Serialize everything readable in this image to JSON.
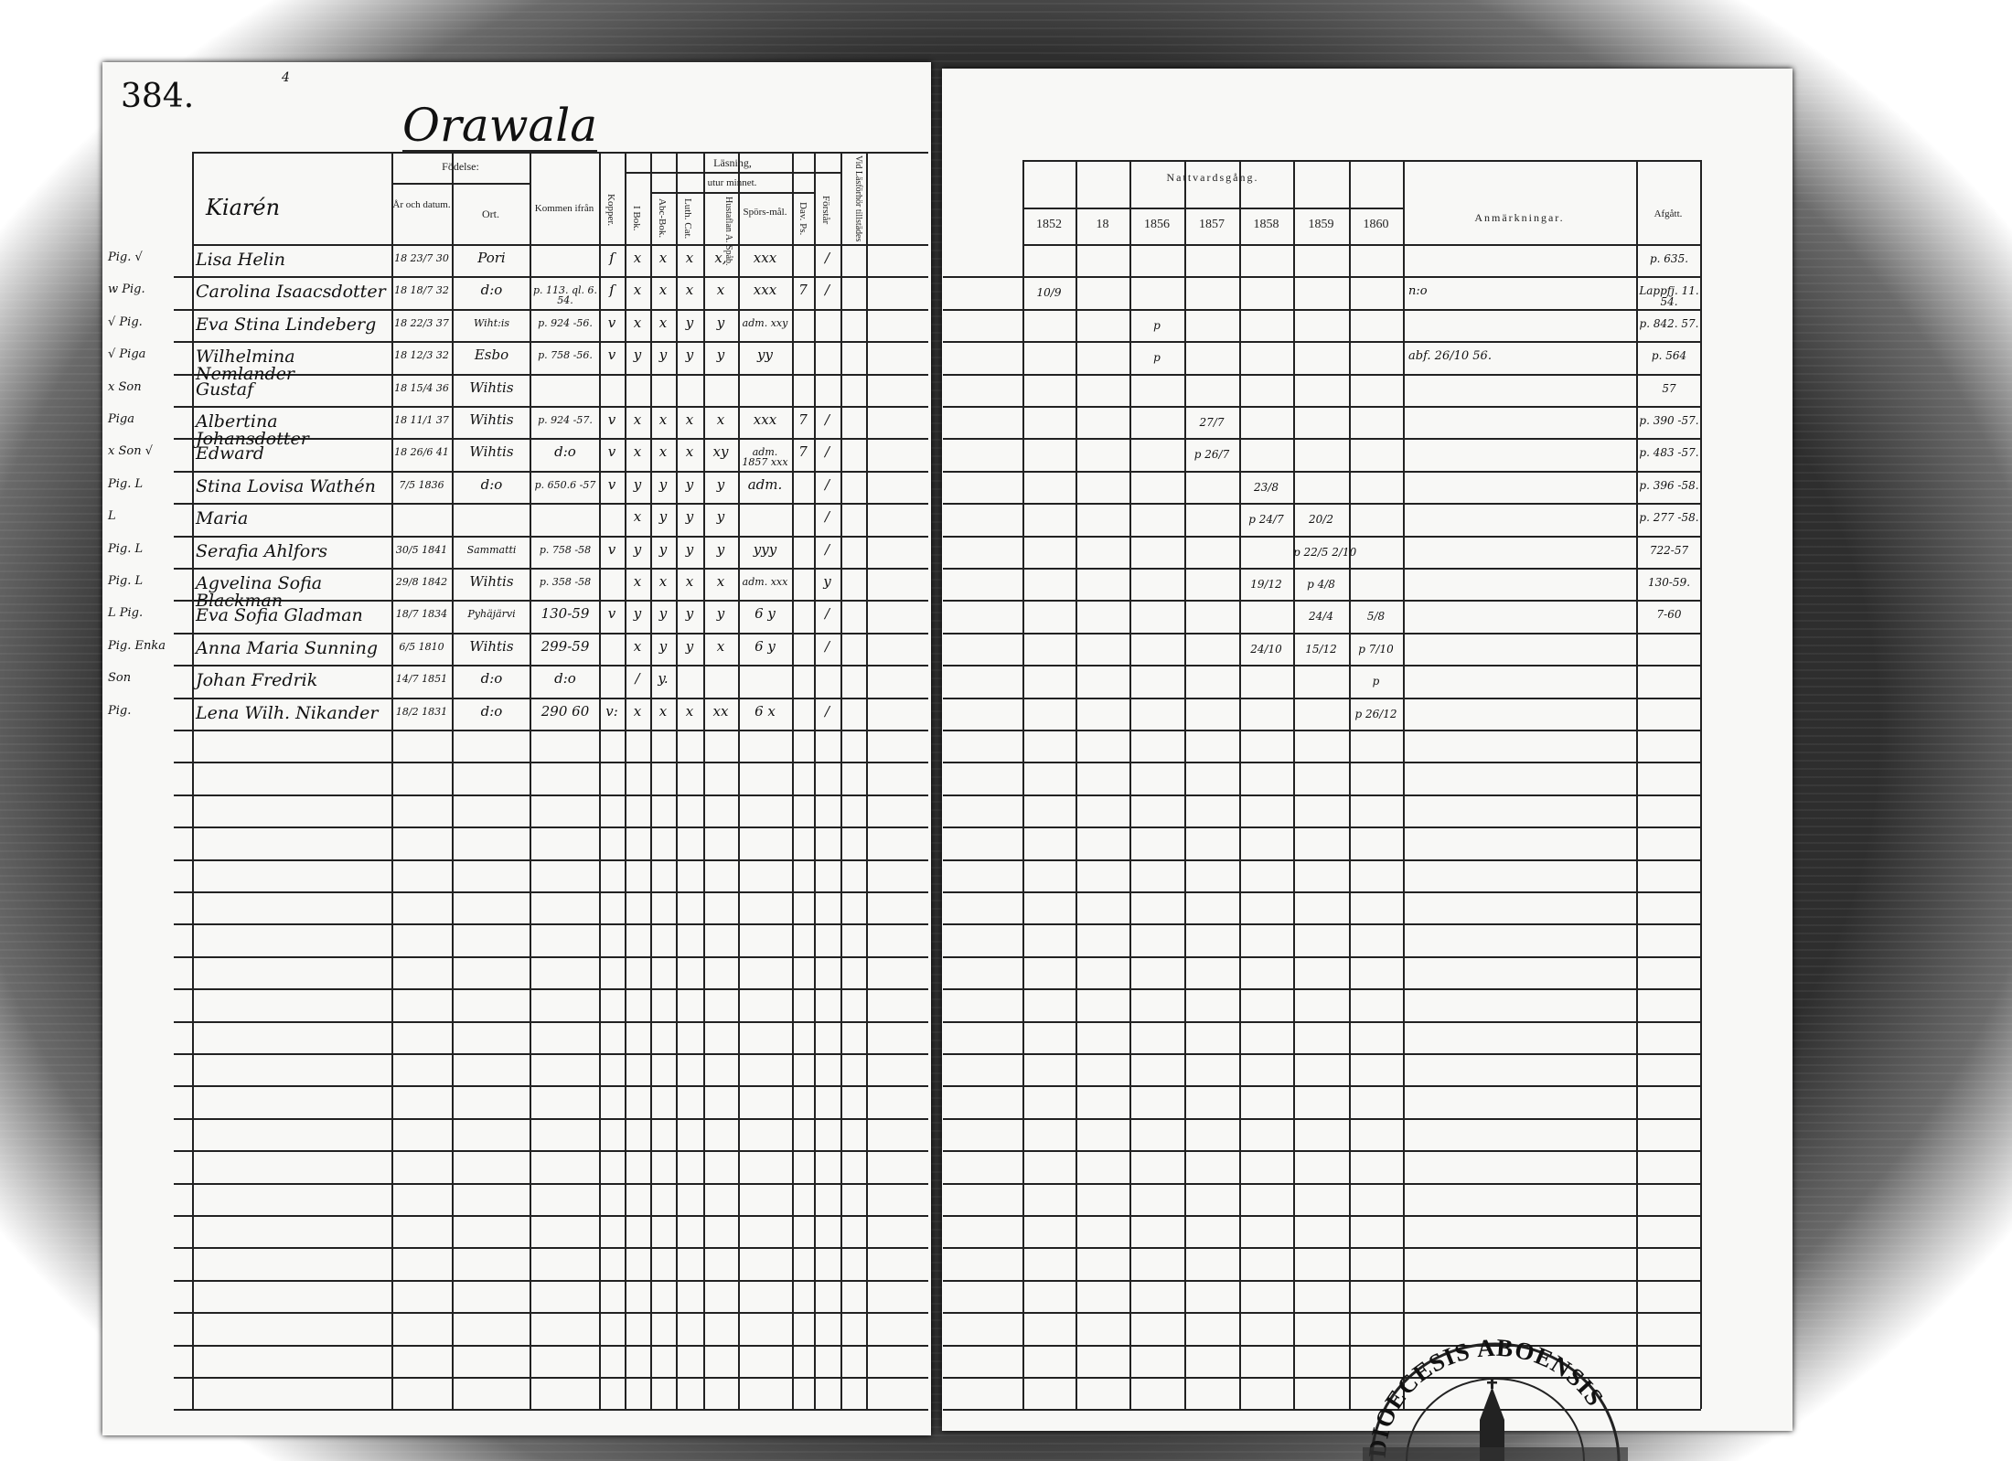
{
  "page_number": "384.",
  "top_mark": "4",
  "village_title": "Orawala",
  "left_headers": {
    "household": "Kiarén",
    "birth": "Födelse:",
    "birth_year": "År och datum.",
    "birth_place": "Ort.",
    "came_from": "Kommen ifrån",
    "smallpox": "Kopper.",
    "reading": "Läsning,",
    "by_heart": "utur minnet.",
    "in_book": "I Bok.",
    "abc_book": "Abc-Bok.",
    "luth_cat": "Luth. Cat.",
    "house_table": "Hustaflan A. Spåb.",
    "questions": "Spörs-mål.",
    "dav_ps": "Dav. Ps.",
    "understands": "Förstår",
    "at_exam": "Vid Läsförhör tillstädes"
  },
  "right_headers": {
    "communion": "Nattvardsgång.",
    "years": [
      "1852",
      "18",
      "1856",
      "1857",
      "1858",
      "1859",
      "1860"
    ],
    "remarks": "Anmärkningar.",
    "departed": "Afgått."
  },
  "rows": [
    {
      "margin": "Pig. √",
      "name": "Lisa Helin",
      "birth": "18 23/7 30",
      "ort": "Pori",
      "kommen": "",
      "kopper": "ſ",
      "ibok": "x",
      "abc": "x",
      "luth": "x",
      "hust": "x,",
      "spors": "xxx",
      "dav": "",
      "forstar": "/",
      "vid": "",
      "nattvard": [
        "",
        "",
        "",
        "",
        "",
        "",
        ""
      ],
      "anm": "",
      "afgatt": "p. 635."
    },
    {
      "margin": "w  Pig.",
      "name": "Carolina Isaacsdotter",
      "birth": "18 18/7 32",
      "ort": "d:o",
      "kommen": "p. 113. ql. 6. 54.",
      "kopper": "ſ",
      "ibok": "x",
      "abc": "x",
      "luth": "x",
      "hust": "x",
      "spors": "xxx",
      "dav": "7",
      "forstar": "/",
      "vid": "",
      "nattvard": [
        "10/9",
        "",
        "",
        "",
        "",
        "",
        ""
      ],
      "anm": "n:o",
      "afgatt": "Lappfj. 11. 54."
    },
    {
      "margin": "√ Pig.",
      "name": "Eva Stina Lindeberg",
      "birth": "18 22/3 37",
      "ort": "Wiht:is",
      "kommen": "p. 924 -56.",
      "kopper": "v",
      "ibok": "x",
      "abc": "x",
      "luth": "y",
      "hust": "y",
      "spors": "adm. xxy",
      "dav": "",
      "forstar": "",
      "vid": "",
      "nattvard": [
        "",
        "",
        "p",
        "",
        "",
        "",
        ""
      ],
      "anm": "",
      "afgatt": "p. 842. 57."
    },
    {
      "margin": "√ Piga",
      "name": "Wilhelmina Nemlander",
      "birth": "18 12/3 32",
      "ort": "Esbo",
      "kommen": "p. 758 -56.",
      "kopper": "v",
      "ibok": "y",
      "abc": "y",
      "luth": "y",
      "hust": "y",
      "spors": "yy",
      "dav": "",
      "forstar": "",
      "vid": "",
      "nattvard": [
        "",
        "",
        "p",
        "",
        "",
        "",
        ""
      ],
      "anm": "abf. 26/10 56.",
      "afgatt": "p. 564"
    },
    {
      "margin": "x Son",
      "name": "Gustaf",
      "birth": "18 15/4 36",
      "ort": "Wihtis",
      "kommen": "",
      "kopper": "",
      "ibok": "",
      "abc": "",
      "luth": "",
      "hust": "",
      "spors": "",
      "dav": "",
      "forstar": "",
      "vid": "",
      "nattvard": [
        "",
        "",
        "",
        "",
        "",
        "",
        ""
      ],
      "anm": "",
      "afgatt": "57"
    },
    {
      "margin": "Piga",
      "name": "Albertina Johansdotter",
      "birth": "18 11/1 37",
      "ort": "Wihtis",
      "kommen": "p. 924 -57.",
      "kopper": "v",
      "ibok": "x",
      "abc": "x",
      "luth": "x",
      "hust": "x",
      "spors": "xxx",
      "dav": "7",
      "forstar": "/",
      "vid": "",
      "nattvard": [
        "",
        "",
        "",
        "27/7",
        "",
        "",
        ""
      ],
      "anm": "",
      "afgatt": "p. 390 -57."
    },
    {
      "margin": "x Son √",
      "name": "Edward",
      "birth": "18 26/6 41",
      "ort": "Wihtis",
      "kommen": "d:o",
      "kopper": "v",
      "ibok": "x",
      "abc": "x",
      "luth": "x",
      "hust": "xy",
      "spors": "adm. 1857 xxx",
      "dav": "7",
      "forstar": "/",
      "vid": "",
      "nattvard": [
        "",
        "",
        "",
        "p 26/7",
        "",
        "",
        ""
      ],
      "anm": "",
      "afgatt": "p. 483 -57."
    },
    {
      "margin": "Pig. L",
      "name": "Stina Lovisa Wathén",
      "birth": "7/5 1836",
      "ort": "d:o",
      "kommen": "p. 650.6 -57",
      "kopper": "v",
      "ibok": "y",
      "abc": "y",
      "luth": "y",
      "hust": "y",
      "spors": "adm.",
      "dav": "",
      "forstar": "/",
      "vid": "",
      "nattvard": [
        "",
        "",
        "",
        "",
        "23/8",
        "",
        ""
      ],
      "anm": "",
      "afgatt": "p. 396 -58."
    },
    {
      "margin": "L",
      "name": "Maria",
      "birth": "",
      "ort": "",
      "kommen": "",
      "kopper": "",
      "ibok": "x",
      "abc": "y",
      "luth": "y",
      "hust": "y",
      "spors": "",
      "dav": "",
      "forstar": "/",
      "vid": "",
      "nattvard": [
        "",
        "",
        "",
        "",
        "p 24/7",
        "20/2",
        ""
      ],
      "anm": "",
      "afgatt": "p. 277 -58."
    },
    {
      "margin": "Pig. L",
      "name": "Serafia Ahlfors",
      "birth": "30/5 1841",
      "ort": "Sammatti",
      "kommen": "p. 758 -58",
      "kopper": "v",
      "ibok": "y",
      "abc": "y",
      "luth": "y",
      "hust": "y",
      "spors": "yyy",
      "dav": "",
      "forstar": "/",
      "vid": "",
      "nattvard": [
        "",
        "",
        "",
        "",
        "",
        "p 22/5 2/10",
        ""
      ],
      "anm": "",
      "afgatt": "722-57"
    },
    {
      "margin": "Pig. L",
      "name": "Agvelina Sofia Blackman",
      "birth": "29/8 1842",
      "ort": "Wihtis",
      "kommen": "p. 358 -58",
      "kopper": "",
      "ibok": "x",
      "abc": "x",
      "luth": "x",
      "hust": "x",
      "spors": "adm. xxx",
      "dav": "",
      "forstar": "y",
      "vid": "",
      "nattvard": [
        "",
        "",
        "",
        "",
        "19/12",
        "p 4/8",
        ""
      ],
      "anm": "",
      "afgatt": "130-59."
    },
    {
      "margin": "L Pig.",
      "name": "Eva Sofia Gladman",
      "birth": "18/7 1834",
      "ort": "Pyhäjärvi",
      "kommen": "130-59",
      "kopper": "v",
      "ibok": "y",
      "abc": "y",
      "luth": "y",
      "hust": "y",
      "spors": "6 y",
      "dav": "",
      "forstar": "/",
      "vid": "",
      "nattvard": [
        "",
        "",
        "",
        "",
        "",
        "24/4",
        "5/8"
      ],
      "anm": "",
      "afgatt": "7-60"
    },
    {
      "margin": "Pig. Enka",
      "name": "Anna Maria Sunning",
      "birth": "6/5 1810",
      "ort": "Wihtis",
      "kommen": "299-59",
      "kopper": "",
      "ibok": "x",
      "abc": "y",
      "luth": "y",
      "hust": "x",
      "spors": "6 y",
      "dav": "",
      "forstar": "/",
      "vid": "",
      "nattvard": [
        "",
        "",
        "",
        "",
        "24/10",
        "15/12",
        "p 7/10"
      ],
      "anm": "",
      "afgatt": ""
    },
    {
      "margin": "Son",
      "name": "Johan Fredrik",
      "birth": "14/7 1851",
      "ort": "d:o",
      "kommen": "d:o",
      "kopper": "",
      "ibok": "/",
      "abc": "y.",
      "luth": "",
      "hust": "",
      "spors": "",
      "dav": "",
      "forstar": "",
      "vid": "",
      "nattvard": [
        "",
        "",
        "",
        "",
        "",
        "",
        "p"
      ],
      "anm": "",
      "afgatt": ""
    },
    {
      "margin": "Pig.",
      "name": "Lena Wilh. Nikander",
      "birth": "18/2 1831",
      "ort": "d:o",
      "kommen": "290 60",
      "kopper": "v:",
      "ibok": "x",
      "abc": "x",
      "luth": "x",
      "hust": "xx",
      "spors": "6 x",
      "dav": "",
      "forstar": "/",
      "vid": "",
      "nattvard": [
        "",
        "",
        "",
        "",
        "",
        "",
        "p 26/12"
      ],
      "anm": "",
      "afgatt": ""
    }
  ],
  "stamp": {
    "text": "DIOECESIS ABOENSIS",
    "icon": "church-icon"
  }
}
